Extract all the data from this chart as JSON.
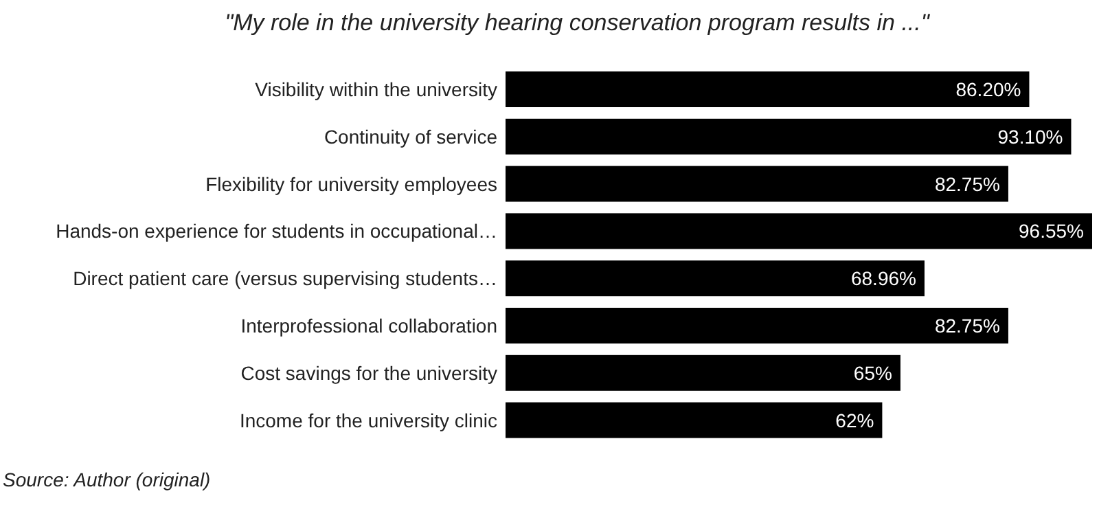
{
  "chart_data": {
    "type": "bar",
    "orientation": "horizontal",
    "title": "\"My role in the university hearing conservation program results in ...\"",
    "categories": [
      "Visibility within the university",
      "Continuity of service",
      "Flexibility for university employees",
      "Hands-on experience for students in occupational…",
      "Direct patient care (versus supervising students…",
      "Interprofessional collaboration",
      "Cost savings for the university",
      "Income for the university clinic"
    ],
    "values": [
      86.2,
      93.1,
      82.75,
      96.55,
      68.96,
      82.75,
      65,
      62
    ],
    "value_labels": [
      "86.20%",
      "93.10%",
      "82.75%",
      "96.55%",
      "68.96%",
      "82.75%",
      "65%",
      "62%"
    ],
    "color": "#000000",
    "annotations": [
      "Source: Author (original)"
    ]
  }
}
